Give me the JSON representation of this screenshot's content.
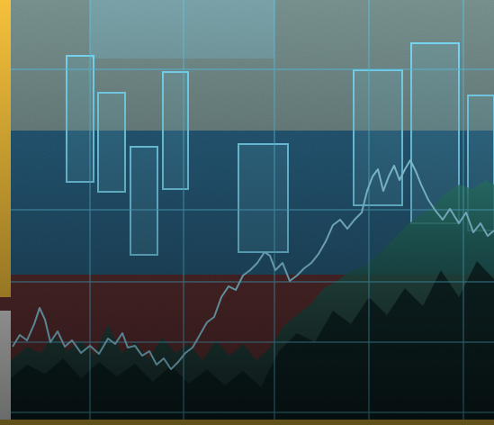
{
  "image": {
    "kind": "stock-style financial chart montage",
    "colors": {
      "wall_top": "#6f8e8c",
      "band_blue": "#1f5f86",
      "band_red": "#7a2a2a",
      "grid": "#5ec8e8",
      "line": "#8fe2ff",
      "area": "#2c7a6b",
      "accent_left": "#f5c13a",
      "accent_bottom": "#d8b23a"
    }
  }
}
